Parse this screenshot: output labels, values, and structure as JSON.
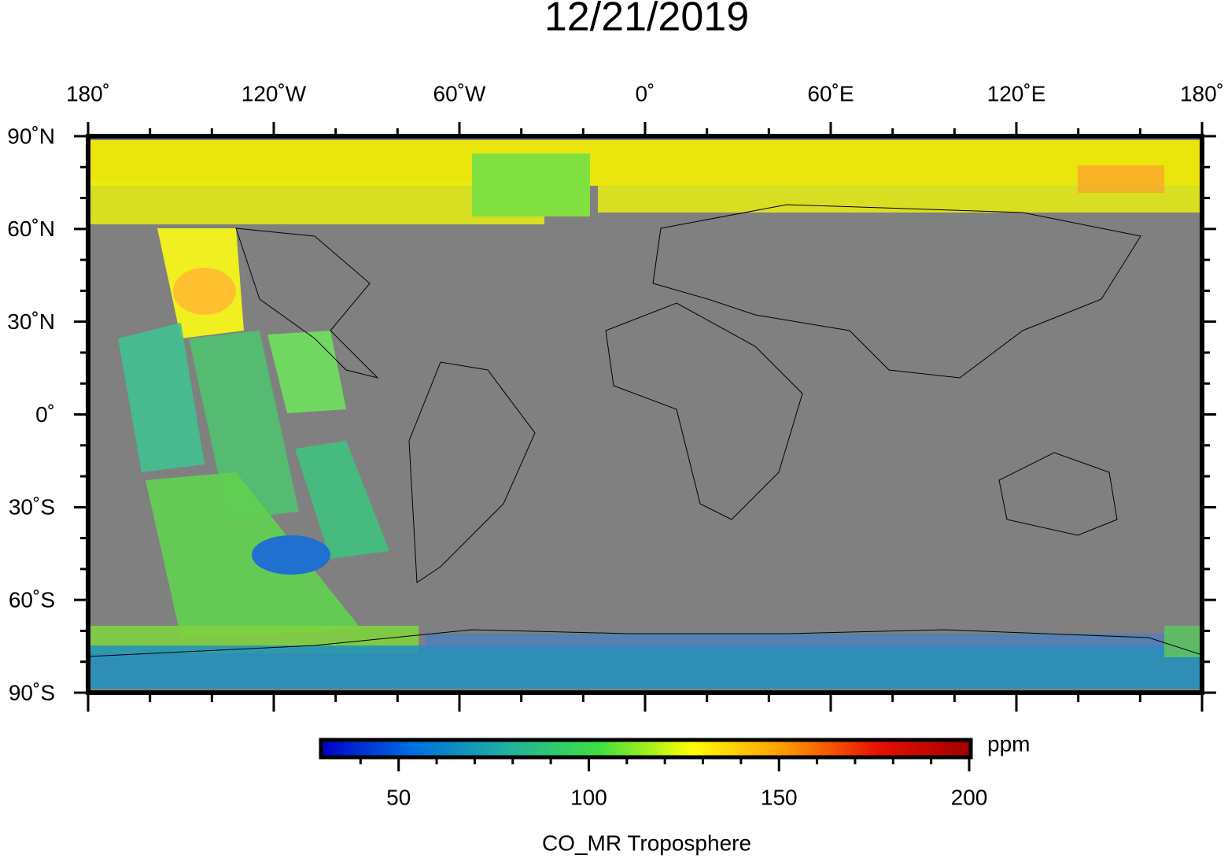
{
  "title": "12/21/2019",
  "map": {
    "xlim": [
      -180,
      180
    ],
    "ylim": [
      -90,
      90
    ],
    "xticks": [
      {
        "value": -180,
        "label": "180˚"
      },
      {
        "value": -120,
        "label": "120˚W"
      },
      {
        "value": -60,
        "label": "60˚W"
      },
      {
        "value": 0,
        "label": "0˚"
      },
      {
        "value": 60,
        "label": "60˚E"
      },
      {
        "value": 120,
        "label": "120˚E"
      },
      {
        "value": 180,
        "label": "180˚"
      }
    ],
    "yticks": [
      {
        "value": 90,
        "label": "90˚N"
      },
      {
        "value": 60,
        "label": "60˚N"
      },
      {
        "value": 30,
        "label": "30˚N"
      },
      {
        "value": 0,
        "label": "0˚"
      },
      {
        "value": -30,
        "label": "30˚S"
      },
      {
        "value": -60,
        "label": "60˚S"
      },
      {
        "value": -90,
        "label": "90˚S"
      }
    ],
    "xminor": [
      -160,
      -140,
      -100,
      -80,
      -40,
      -20,
      20,
      40,
      80,
      100,
      140,
      160
    ],
    "yminor": [
      80,
      70,
      50,
      40,
      20,
      10,
      -10,
      -20,
      -40,
      -50,
      -70,
      -80
    ]
  },
  "colorbar": {
    "label": "CO_MR Troposphere",
    "units": "ppm",
    "lim": [
      30,
      200
    ],
    "ticks": [
      50,
      100,
      150,
      200
    ],
    "minor": [
      40,
      60,
      70,
      80,
      90,
      110,
      120,
      130,
      140,
      160,
      170,
      180,
      190
    ],
    "colors": [
      "#0000c8",
      "#0070e0",
      "#20b0a0",
      "#40e040",
      "#ffff00",
      "#ff9a00",
      "#e81000",
      "#a00000"
    ]
  }
}
